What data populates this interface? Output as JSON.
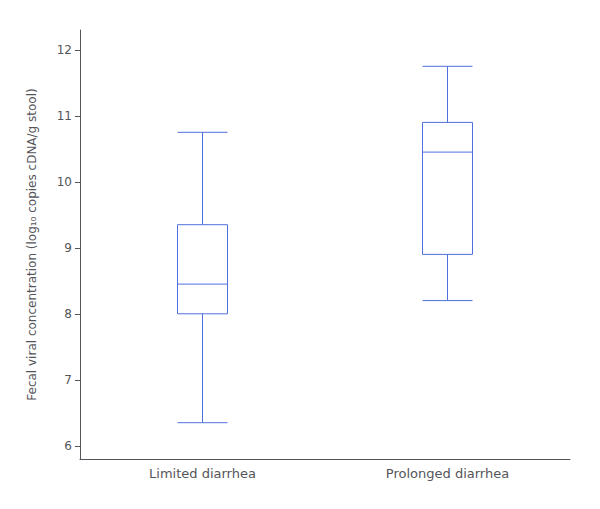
{
  "chart_data": {
    "type": "boxplot",
    "categories": [
      "Limited diarrhea",
      "Prolonged diarrhea"
    ],
    "values": [
      [
        6.35,
        8.0,
        8.45,
        9.35,
        10.75
      ],
      [
        8.2,
        8.9,
        10.45,
        10.9,
        11.75
      ]
    ],
    "ylabel": "Fecal viral concentration (log₁₀ copies cDNA/g stool)",
    "ylim": [
      5.8,
      12.3
    ],
    "yticks": [
      6,
      7,
      8,
      9,
      10,
      11,
      12
    ],
    "grid": false
  }
}
